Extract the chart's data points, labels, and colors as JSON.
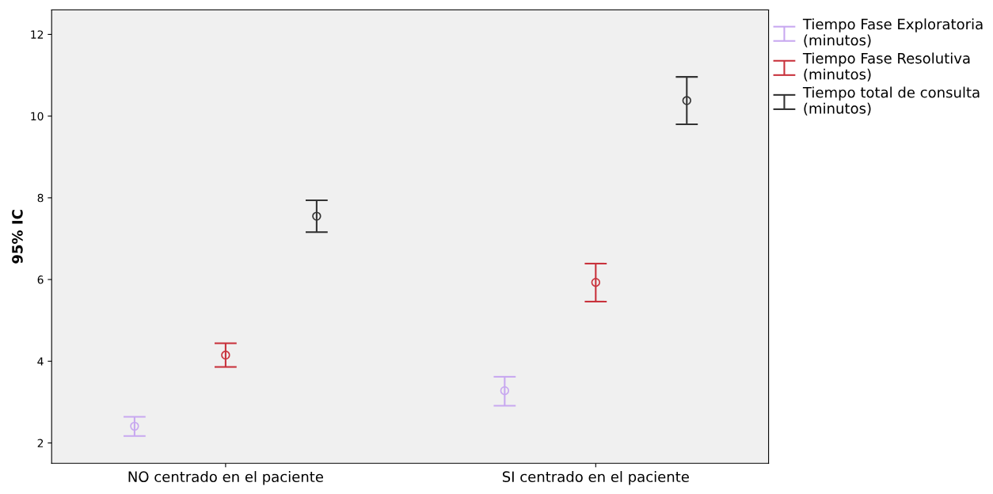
{
  "chart_data": {
    "type": "scatter",
    "ylabel": "95% IC",
    "categories": [
      "NO centrado en el paciente",
      "SI centrado en el paciente"
    ],
    "series": [
      {
        "name": "Tiempo Fase Exploratoria\n(minutos)",
        "color": "#c8a8f0",
        "values": [
          2.41,
          3.28
        ],
        "errors": [
          [
            2.17,
            2.64
          ],
          [
            2.91,
            3.62
          ]
        ]
      },
      {
        "name": "Tiempo Fase Resolutiva\n(minutos)",
        "color": "#c8323c",
        "values": [
          4.15,
          5.93
        ],
        "errors": [
          [
            3.86,
            4.44
          ],
          [
            5.46,
            6.39
          ]
        ]
      },
      {
        "name": "Tiempo total de consulta\n(minutos)",
        "color": "#333333",
        "values": [
          7.55,
          10.38
        ],
        "errors": [
          [
            7.16,
            7.94
          ],
          [
            9.8,
            10.96
          ]
        ]
      }
    ],
    "ylim": [
      1.5,
      12.6
    ],
    "yticks": [
      2,
      4,
      6,
      8,
      10,
      12
    ],
    "grid": false,
    "legend": "top right",
    "marker": "circle"
  }
}
